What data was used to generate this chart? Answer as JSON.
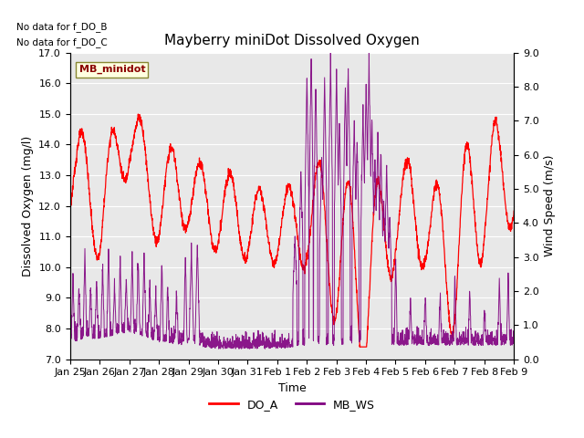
{
  "title": "Mayberry miniDot Dissolved Oxygen",
  "ylabel_left": "Dissolved Oxygen (mg/l)",
  "ylabel_right": "Wind Speed (m/s)",
  "xlabel": "Time",
  "no_data_text": [
    "No data for f_DO_B",
    "No data for f_DO_C"
  ],
  "legend_label_text": "MB_minidot",
  "ylim_left": [
    7.0,
    17.0
  ],
  "ylim_right": [
    0.0,
    9.0
  ],
  "bg_color": "#e8e8e8",
  "line_DO_color": "red",
  "line_WS_color": "purple",
  "legend_items": [
    {
      "label": "DO_A",
      "color": "red"
    },
    {
      "label": "MB_WS",
      "color": "purple"
    }
  ],
  "xtick_labels": [
    "Jan 25",
    "Jan 26",
    "Jan 27",
    "Jan 28",
    "Jan 29",
    "Jan 30",
    "Jan 31",
    "Feb 1",
    "Feb 2",
    "Feb 3",
    "Feb 4",
    "Feb 5",
    "Feb 6",
    "Feb 7",
    "Feb 8",
    "Feb 9"
  ],
  "title_fontsize": 11,
  "axis_label_fontsize": 9,
  "tick_fontsize": 8,
  "legend_fontsize": 9
}
